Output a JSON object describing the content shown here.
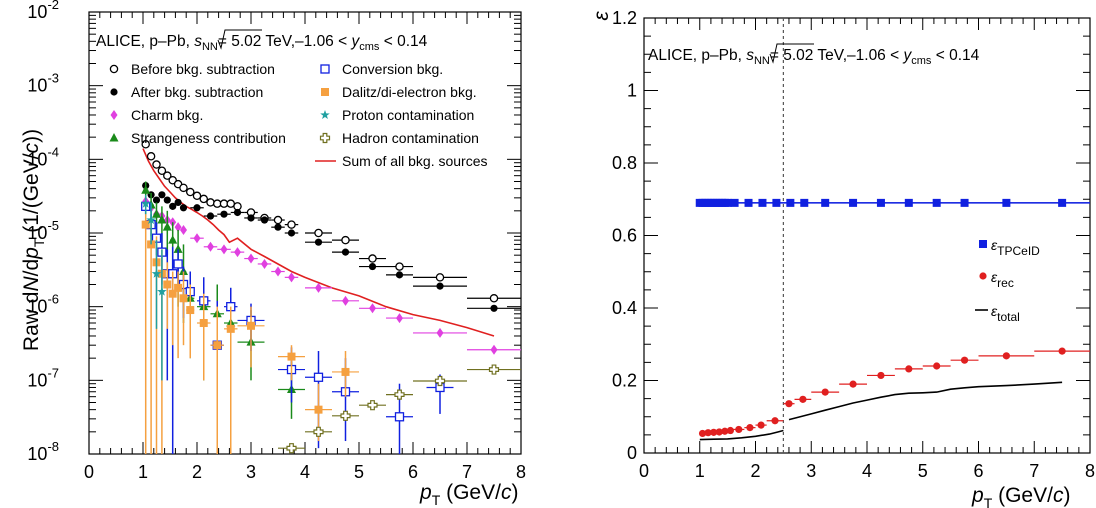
{
  "chart_data": [
    {
      "type": "scatter",
      "scale_y": "log",
      "xlim": [
        0,
        8
      ],
      "ylim": [
        1e-08,
        0.01
      ],
      "x_ticks": [
        "0",
        "1",
        "2",
        "3",
        "4",
        "5",
        "6",
        "7",
        "8"
      ],
      "y_ticks": [
        "10",
        "10",
        "10",
        "10",
        "10",
        "10",
        "10"
      ],
      "y_tick_exponents": [
        "-8",
        "-7",
        "-6",
        "-5",
        "-4",
        "-3",
        "-2"
      ],
      "xlabel": {
        "main": "p",
        "sub": "T",
        "tail": " (GeV/",
        "unit": "c",
        "close": ")"
      },
      "ylabel": {
        "pre": "Raw d",
        "n": "N",
        "mid": "/d",
        "p": "p",
        "sub": "T",
        "paren": " (1/(GeV/",
        "c": "c",
        "close": "))"
      },
      "header": {
        "collab": "ALICE, p–Pb, ",
        "sqrt_s": "s",
        "nn": "NN",
        "energy": "= 5.02 TeV,–1.06 < ",
        "y": "y",
        "cms": "cms",
        "tail": " < 0.14"
      },
      "legend_left": [
        {
          "label": "Before bkg. subtraction",
          "marker": "open-circle",
          "color": "#000000"
        },
        {
          "label": "After bkg. subtraction",
          "marker": "filled-circle",
          "color": "#000000"
        },
        {
          "label": "Charm bkg.",
          "marker": "diamond",
          "color": "#e040e0"
        },
        {
          "label": "Strangeness contribution",
          "marker": "triangle",
          "color": "#1a8a1a"
        }
      ],
      "legend_right": [
        {
          "label": "Conversion bkg.",
          "marker": "open-square",
          "color": "#1020e0"
        },
        {
          "label": "Dalitz/di-electron bkg.",
          "marker": "filled-square",
          "color": "#f5a040"
        },
        {
          "label": "Proton contamination",
          "marker": "star",
          "color": "#20a0a0"
        },
        {
          "label": "Hadron contamination",
          "marker": "open-cross",
          "color": "#707020"
        },
        {
          "label": "Sum of all bkg. sources",
          "marker": "line",
          "color": "#e02020"
        }
      ],
      "series": [
        {
          "name": "Before bkg. subtraction",
          "marker": "open-circle",
          "color": "#000000",
          "x": [
            1.05,
            1.15,
            1.25,
            1.35,
            1.45,
            1.55,
            1.65,
            1.75,
            1.875,
            2.0,
            2.125,
            2.25,
            2.375,
            2.5,
            2.625,
            2.75,
            3.0,
            3.25,
            3.5,
            3.75,
            4.25,
            4.75,
            5.25,
            5.75,
            6.5,
            7.5
          ],
          "xerr": [
            0.05,
            0.05,
            0.05,
            0.05,
            0.05,
            0.05,
            0.05,
            0.05,
            0.075,
            0.05,
            0.075,
            0.075,
            0.075,
            0.075,
            0.075,
            0.075,
            0.125,
            0.125,
            0.125,
            0.125,
            0.25,
            0.25,
            0.25,
            0.25,
            0.5,
            0.5
          ],
          "y": [
            0.00016,
            0.00011,
            8.5e-05,
            7e-05,
            6e-05,
            5.2e-05,
            4.6e-05,
            4.1e-05,
            3.6e-05,
            3.2e-05,
            2.9e-05,
            2.6e-05,
            2.5e-05,
            2.5e-05,
            2.5e-05,
            2.3e-05,
            1.9e-05,
            1.6e-05,
            1.5e-05,
            1.3e-05,
            1e-05,
            8e-06,
            4.5e-06,
            3.5e-06,
            2.5e-06,
            1.3e-06
          ]
        },
        {
          "name": "After bkg. subtraction",
          "marker": "filled-circle",
          "color": "#000000",
          "x": [
            1.05,
            1.15,
            1.25,
            1.35,
            1.45,
            1.55,
            1.65,
            1.75,
            2.0,
            2.25,
            2.5,
            2.75,
            3.0,
            3.25,
            3.5,
            3.75,
            4.25,
            4.75,
            5.25,
            5.75,
            6.5,
            7.5
          ],
          "xerr": [
            0.05,
            0.05,
            0.05,
            0.05,
            0.05,
            0.05,
            0.05,
            0.05,
            0.125,
            0.125,
            0.125,
            0.125,
            0.125,
            0.125,
            0.125,
            0.125,
            0.25,
            0.25,
            0.25,
            0.25,
            0.5,
            0.5
          ],
          "y": [
            4.4e-05,
            3.3e-05,
            2.8e-05,
            3.3e-05,
            2.8e-05,
            2.3e-05,
            2.6e-05,
            2.2e-05,
            2.2e-05,
            1.7e-05,
            1.8e-05,
            1.9e-05,
            1.6e-05,
            1.5e-05,
            1.2e-05,
            1e-05,
            7.5e-06,
            5.5e-06,
            3.5e-06,
            2.7e-06,
            1.9e-06,
            9.5e-07
          ]
        },
        {
          "name": "Charm bkg.",
          "marker": "diamond",
          "color": "#e040e0",
          "x": [
            1.05,
            1.15,
            1.25,
            1.35,
            1.45,
            1.55,
            1.65,
            1.75,
            2.0,
            2.25,
            2.5,
            2.75,
            3.0,
            3.25,
            3.5,
            3.75,
            4.25,
            4.75,
            5.25,
            5.75,
            6.5,
            7.5
          ],
          "xerr": [
            0.05,
            0.05,
            0.05,
            0.05,
            0.05,
            0.05,
            0.05,
            0.05,
            0.125,
            0.125,
            0.125,
            0.125,
            0.125,
            0.125,
            0.125,
            0.125,
            0.25,
            0.25,
            0.25,
            0.25,
            0.5,
            0.5
          ],
          "y": [
            2.7e-05,
            2.2e-05,
            1.8e-05,
            1.7e-05,
            1.5e-05,
            1.4e-05,
            1.2e-05,
            1.1e-05,
            8.5e-06,
            6.5e-06,
            6e-06,
            5.5e-06,
            4.5e-06,
            3.8e-06,
            3e-06,
            2.5e-06,
            1.8e-06,
            1.2e-06,
            9.5e-07,
            7e-07,
            4.4e-07,
            2.6e-07
          ]
        },
        {
          "name": "Strangeness contribution",
          "marker": "triangle",
          "color": "#1a8a1a",
          "x": [
            1.05,
            1.15,
            1.25,
            1.35,
            1.45,
            1.55,
            1.65,
            1.75,
            1.875,
            2.125,
            2.375,
            2.625,
            3.0,
            3.75
          ],
          "xerr": [
            0.05,
            0.05,
            0.05,
            0.05,
            0.05,
            0.05,
            0.05,
            0.05,
            0.075,
            0.125,
            0.125,
            0.125,
            0.25,
            0.25
          ],
          "y": [
            3.8e-05,
            2.4e-05,
            1.8e-05,
            1.5e-05,
            1.2e-05,
            8e-06,
            6e-06,
            3e-06,
            1.3e-06,
            1e-06,
            8e-07,
            6e-07,
            3.3e-07,
            7.5e-08
          ],
          "yerr_lo": [
            0,
            0,
            0,
            0,
            0,
            0,
            0,
            0,
            0,
            0,
            0,
            0,
            0,
            0
          ],
          "yerr_hi": [
            0,
            0,
            0,
            0,
            0,
            0,
            0,
            0,
            0,
            0,
            0,
            0,
            0,
            0
          ]
        },
        {
          "name": "Conversion bkg.",
          "marker": "open-square",
          "color": "#1020e0",
          "x": [
            1.05,
            1.15,
            1.25,
            1.35,
            1.45,
            1.55,
            1.65,
            1.75,
            1.875,
            2.125,
            2.375,
            2.625,
            3.0,
            3.75,
            4.25,
            4.75,
            5.75,
            6.5
          ],
          "xerr": [
            0.05,
            0.05,
            0.05,
            0.05,
            0.05,
            0.05,
            0.05,
            0.05,
            0.075,
            0.125,
            0.125,
            0.125,
            0.25,
            0.25,
            0.25,
            0.25,
            0.25,
            0.25
          ],
          "y": [
            2.3e-05,
            1.3e-05,
            8.5e-06,
            5.5e-06,
            2.8e-06,
            2.8e-06,
            3.8e-06,
            2e-06,
            1.6e-06,
            1.2e-06,
            3e-07,
            1e-06,
            6.5e-07,
            1.4e-07,
            1.1e-07,
            7e-08,
            3.2e-08,
            8e-08
          ]
        },
        {
          "name": "Dalitz/di-electron bkg.",
          "marker": "filled-square",
          "color": "#f5a040",
          "x": [
            1.05,
            1.15,
            1.25,
            1.35,
            1.45,
            1.55,
            1.65,
            1.75,
            1.875,
            2.125,
            2.375,
            2.625,
            3.0,
            3.75,
            4.25,
            4.75
          ],
          "xerr": [
            0.05,
            0.05,
            0.05,
            0.05,
            0.05,
            0.05,
            0.05,
            0.05,
            0.075,
            0.125,
            0.125,
            0.125,
            0.25,
            0.25,
            0.25,
            0.25
          ],
          "y": [
            1.3e-05,
            7e-06,
            4e-06,
            2.8e-06,
            2e-06,
            1.5e-06,
            1.8e-06,
            1.3e-06,
            9e-07,
            6e-07,
            3e-07,
            5e-07,
            5.5e-07,
            2.1e-07,
            4e-08,
            1.3e-07
          ]
        },
        {
          "name": "Proton contamination",
          "marker": "star",
          "color": "#20a0a0",
          "x": [
            1.05,
            1.15,
            1.25,
            1.35
          ],
          "xerr": [
            0.05,
            0.05,
            0.05,
            0.05
          ],
          "y": [
            2.5e-05,
            1.5e-05,
            2.8e-06,
            1.6e-06
          ]
        },
        {
          "name": "Hadron contamination",
          "marker": "open-cross",
          "color": "#707020",
          "x": [
            3.75,
            4.25,
            4.75,
            5.25,
            5.75,
            6.5,
            7.5
          ],
          "xerr": [
            0.25,
            0.25,
            0.25,
            0.25,
            0.25,
            0.5,
            0.5
          ],
          "y": [
            1.2e-08,
            2e-08,
            3.3e-08,
            4.6e-08,
            6.4e-08,
            9.8e-08,
            1.4e-07
          ]
        }
      ],
      "sum_line": {
        "name": "Sum of all bkg. sources",
        "color": "#e02020",
        "x": [
          1.0,
          1.1,
          1.2,
          1.3,
          1.4,
          1.5,
          1.6,
          1.7,
          1.8,
          1.9,
          2.0,
          2.1,
          2.2,
          2.3,
          2.4,
          2.5,
          2.6,
          2.75,
          3.0,
          3.25,
          3.5,
          3.75,
          4.0,
          4.5,
          5.0,
          5.5,
          6.0,
          6.5,
          7.0,
          7.5
        ],
        "y": [
          0.00014,
          9.5e-05,
          7e-05,
          5.5e-05,
          4.3e-05,
          3.6e-05,
          3e-05,
          2.6e-05,
          2.3e-05,
          2.1e-05,
          1.9e-05,
          1.7e-05,
          1.5e-05,
          1.3e-05,
          1.1e-05,
          9.5e-06,
          7.5e-06,
          8.5e-06,
          6e-06,
          4.8e-06,
          3.8e-06,
          3e-06,
          2.5e-06,
          1.8e-06,
          1.4e-06,
          1e-06,
          7.8e-07,
          6.5e-07,
          5.2e-07,
          4e-07
        ]
      }
    },
    {
      "type": "scatter",
      "xlim": [
        0,
        8
      ],
      "ylim": [
        0,
        1.2
      ],
      "x_ticks": [
        "0",
        "1",
        "2",
        "3",
        "4",
        "5",
        "6",
        "7",
        "8"
      ],
      "y_ticks": [
        "0",
        "0.2",
        "0.4",
        "0.6",
        "0.8",
        "1",
        "1.2"
      ],
      "ylabel": "ε",
      "xlabel": {
        "main": "p",
        "sub": "T",
        "tail": " (GeV/",
        "unit": "c",
        "close": ")"
      },
      "header": {
        "collab": "ALICE, p–Pb, ",
        "sqrt_s": "s",
        "nn": "NN",
        "energy": "= 5.02 TeV,–1.06 < ",
        "y": "y",
        "cms": "cms",
        "tail": " < 0.14"
      },
      "vline_x": 2.5,
      "legend": [
        {
          "symbol": "ε",
          "sub": "TPCeID",
          "marker": "filled-square",
          "color": "#1020e0"
        },
        {
          "symbol": "ε",
          "sub": "rec",
          "marker": "filled-circle",
          "color": "#e02020"
        },
        {
          "symbol": "ε",
          "sub": "total",
          "marker": "line",
          "color": "#000000"
        }
      ],
      "series": [
        {
          "name": "TPCeID",
          "marker": "filled-square",
          "color": "#1020e0",
          "x": [
            1.0,
            1.05,
            1.1,
            1.15,
            1.2,
            1.25,
            1.3,
            1.35,
            1.4,
            1.45,
            1.5,
            1.625,
            1.875,
            2.125,
            2.375,
            2.625,
            2.875,
            3.25,
            3.75,
            4.25,
            4.75,
            5.25,
            5.75,
            6.5,
            7.5
          ],
          "xerr": [
            0,
            0,
            0,
            0,
            0,
            0,
            0,
            0,
            0,
            0,
            0,
            0.125,
            0.125,
            0.125,
            0.125,
            0.125,
            0.125,
            0.25,
            0.25,
            0.25,
            0.25,
            0.25,
            0.25,
            0.5,
            0.5
          ],
          "y": [
            0.69,
            0.69,
            0.69,
            0.69,
            0.69,
            0.69,
            0.69,
            0.69,
            0.69,
            0.69,
            0.69,
            0.69,
            0.69,
            0.69,
            0.69,
            0.69,
            0.69,
            0.69,
            0.69,
            0.69,
            0.69,
            0.69,
            0.69,
            0.69,
            0.69
          ]
        },
        {
          "name": "rec",
          "marker": "filled-circle",
          "color": "#e02020",
          "x": [
            1.05,
            1.15,
            1.25,
            1.35,
            1.45,
            1.55,
            1.7,
            1.9,
            2.1,
            2.35,
            2.6,
            2.85,
            3.25,
            3.75,
            4.25,
            4.75,
            5.25,
            5.75,
            6.5,
            7.5
          ],
          "xerr": [
            0.05,
            0.05,
            0.05,
            0.05,
            0.05,
            0.05,
            0.1,
            0.1,
            0.1,
            0.15,
            0.1,
            0.15,
            0.25,
            0.25,
            0.25,
            0.25,
            0.25,
            0.25,
            0.5,
            0.5
          ],
          "y": [
            0.054,
            0.056,
            0.057,
            0.058,
            0.06,
            0.062,
            0.065,
            0.07,
            0.077,
            0.089,
            0.136,
            0.148,
            0.168,
            0.19,
            0.214,
            0.232,
            0.24,
            0.256,
            0.268,
            0.281
          ]
        }
      ],
      "total_line": {
        "name": "total",
        "color": "#000000",
        "x": [
          1.0,
          1.25,
          1.5,
          1.75,
          2.0,
          2.25,
          2.4,
          2.5,
          2.6,
          2.75,
          3.0,
          3.25,
          3.5,
          3.75,
          4.0,
          4.25,
          4.5,
          4.75,
          5.0,
          5.25,
          5.5,
          5.75,
          6.0,
          6.5,
          7.0,
          7.5
        ],
        "y": [
          0.037,
          0.038,
          0.039,
          0.042,
          0.046,
          0.052,
          0.058,
          0.062,
          0.092,
          0.098,
          0.108,
          0.118,
          0.128,
          0.138,
          0.146,
          0.154,
          0.161,
          0.165,
          0.166,
          0.168,
          0.176,
          0.18,
          0.183,
          0.186,
          0.19,
          0.195
        ]
      }
    }
  ]
}
